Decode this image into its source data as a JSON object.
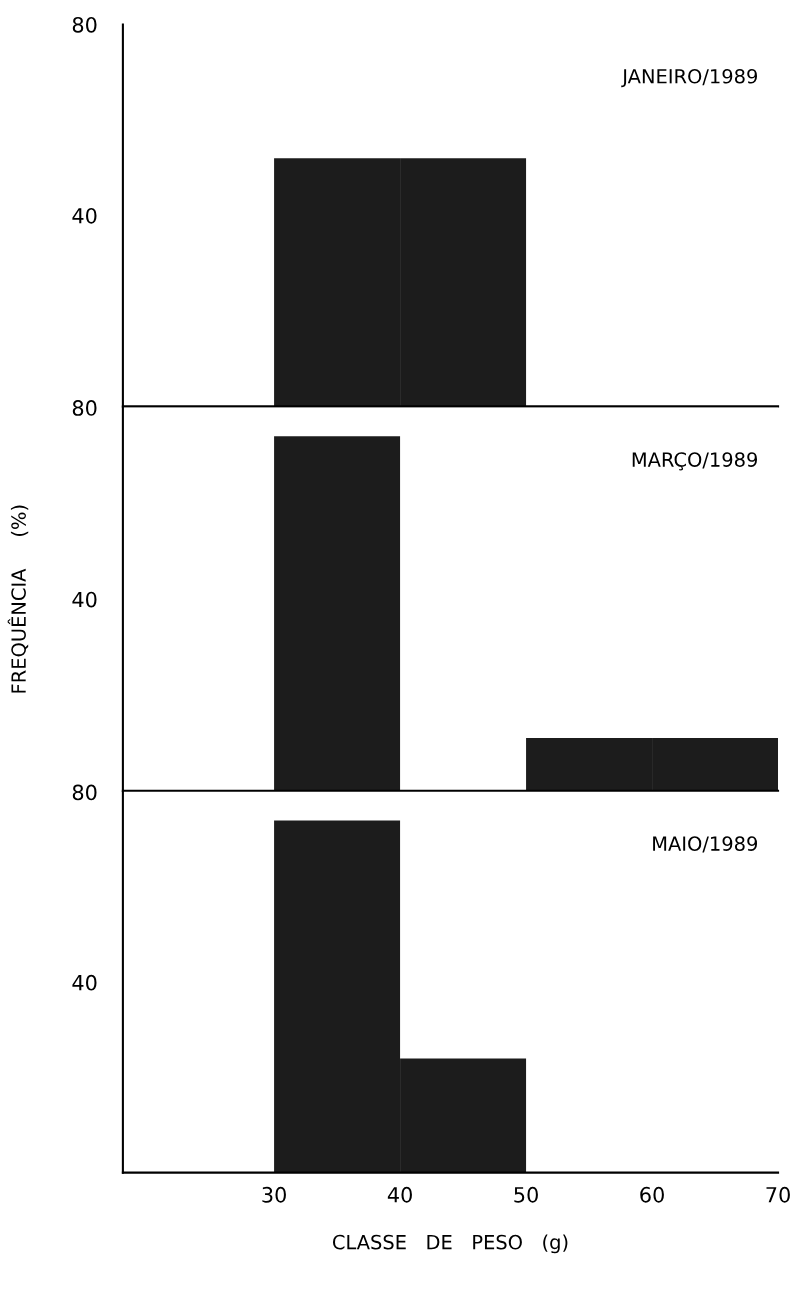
{
  "chart_data": [
    {
      "type": "histogram",
      "title": "JANEIRO/1989",
      "bins": [
        30,
        40,
        50,
        60,
        70
      ],
      "values": [
        52,
        52,
        0,
        0
      ],
      "color": "#1c1c1c",
      "xlim": [
        18,
        70
      ],
      "ylim": [
        0,
        80
      ],
      "yticks": [
        40,
        80
      ],
      "tick_labels": "y",
      "grid": false,
      "legend": false
    },
    {
      "type": "histogram",
      "title": "MARÇO/1989",
      "ylabel": "FREQUÊNCIA     (%)",
      "bins": [
        30,
        40,
        50,
        60,
        70
      ],
      "values": [
        74,
        0,
        11,
        11
      ],
      "color": "#1c1c1c",
      "xlim": [
        18,
        70
      ],
      "ylim": [
        0,
        80
      ],
      "yticks": [
        40,
        80
      ],
      "tick_labels": "y",
      "grid": false,
      "legend": false
    },
    {
      "type": "histogram",
      "title": "MAIO/1989",
      "xlabel": "CLASSE   DE   PESO   (g)",
      "bins": [
        30,
        40,
        50,
        60,
        70
      ],
      "values": [
        74,
        24,
        0,
        0
      ],
      "color": "#1c1c1c",
      "xlim": [
        18,
        70
      ],
      "ylim": [
        0,
        80
      ],
      "xticks": [
        30,
        40,
        50,
        60,
        70
      ],
      "yticks": [
        40,
        80
      ],
      "grid": false,
      "legend": false
    }
  ]
}
